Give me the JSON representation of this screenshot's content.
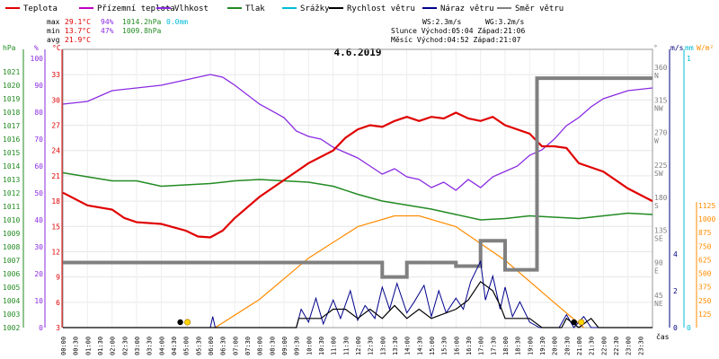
{
  "chart_data": {
    "type": "line",
    "title": "4.6.2019",
    "colors": {
      "temperature": "#e00000",
      "feels_like": "#c000c0",
      "humidity": "#8a2be2",
      "pressure": "#228b22",
      "precipitation": "#00bcd4",
      "wind_speed": "#000000",
      "wind_gust": "#00008b",
      "wind_dir": "#808080",
      "sun": "#ff8c00"
    },
    "legend": [
      {
        "key": "temperature",
        "label": "Teplota"
      },
      {
        "key": "feels_like",
        "label": "Přízemní teplota"
      },
      {
        "key": "humidity",
        "label": "Vlhkost"
      },
      {
        "key": "pressure",
        "label": "Tlak"
      },
      {
        "key": "precipitation",
        "label": "Srážky"
      },
      {
        "key": "wind_speed",
        "label": "Rychlost větru"
      },
      {
        "key": "wind_gust",
        "label": "Náraz větru"
      },
      {
        "key": "wind_dir",
        "label": "Směr větru"
      }
    ],
    "stats": {
      "max_label": "max",
      "max_t": "29.1°C",
      "max_h": "94%",
      "max_p": "1014.2hPa",
      "max_r": "0.0mm",
      "min_label": "min",
      "min_t": "13.7°C",
      "min_h": "47%",
      "min_p": "1009.8hPa",
      "avg_label": "avg",
      "avg_t": "21.9°C",
      "ws": "WS:2.3m/s",
      "wg": "WG:3.2m/s",
      "sun_line": "Slunce Východ:05:04  Západ:21:06",
      "moon_line": "Měsíc  Východ:04:52  Západ:21:07"
    },
    "axes": {
      "hpa_label": "hPa",
      "pct_label": "%",
      "c_label": "°C",
      "dir_label": "°",
      "ms_label": "m/s",
      "mm_label": "mm",
      "wm_label": "W/m²",
      "time_label": "čas",
      "hpa_ticks": [
        "1021",
        "1020",
        "1019",
        "1018",
        "1017",
        "1016",
        "1015",
        "1014",
        "1013",
        "1012",
        "1011",
        "1010",
        "1009",
        "1008",
        "1007",
        "1006",
        "1005",
        "1004",
        "1003",
        "1002"
      ],
      "pct_ticks": [
        "100",
        "90",
        "80",
        "70",
        "60",
        "50",
        "40",
        "30",
        "20",
        "10",
        "0"
      ],
      "c_ticks": [
        "33",
        "30",
        "27",
        "24",
        "21",
        "18",
        "15",
        "12",
        "9",
        "6",
        "3"
      ],
      "dir_ticks": [
        {
          "deg": "360",
          "dir": "N"
        },
        {
          "deg": "315",
          "dir": "NW"
        },
        {
          "deg": "270",
          "dir": "W"
        },
        {
          "deg": "225",
          "dir": "SW"
        },
        {
          "deg": "180",
          "dir": "S"
        },
        {
          "deg": "135",
          "dir": "SE"
        },
        {
          "deg": "90",
          "dir": "E"
        },
        {
          "deg": "45",
          "dir": "NE"
        }
      ],
      "ms_ticks": [
        "4",
        "2",
        "0"
      ],
      "mm_ticks": [
        "1",
        "0"
      ],
      "wm_ticks": [
        "1125",
        "1000",
        "875",
        "750",
        "625",
        "500",
        "375",
        "250",
        "125"
      ],
      "time_ticks": [
        "00:00",
        "00:30",
        "01:00",
        "01:30",
        "02:00",
        "02:30",
        "03:00",
        "03:30",
        "04:00",
        "04:30",
        "05:00",
        "05:30",
        "06:00",
        "06:30",
        "07:00",
        "07:30",
        "08:00",
        "08:30",
        "09:00",
        "09:30",
        "10:00",
        "10:30",
        "11:00",
        "11:30",
        "12:00",
        "12:30",
        "13:00",
        "13:30",
        "14:00",
        "14:30",
        "15:00",
        "15:30",
        "16:00",
        "16:30",
        "17:00",
        "17:30",
        "18:00",
        "18:30",
        "19:00",
        "19:30",
        "20:00",
        "20:30",
        "21:00",
        "21:30",
        "22:00",
        "22:30",
        "23:00",
        "23:30"
      ],
      "t_range": [
        3,
        36
      ],
      "time_range_h": [
        0,
        24
      ]
    },
    "series": {
      "temperature": [
        [
          0,
          19
        ],
        [
          1,
          17.5
        ],
        [
          2,
          17
        ],
        [
          2.5,
          16
        ],
        [
          3,
          15.5
        ],
        [
          4,
          15.3
        ],
        [
          5,
          14.5
        ],
        [
          5.5,
          13.8
        ],
        [
          6,
          13.7
        ],
        [
          6.5,
          14.5
        ],
        [
          7,
          16
        ],
        [
          8,
          18.5
        ],
        [
          9,
          20.5
        ],
        [
          10,
          22.5
        ],
        [
          11,
          24
        ],
        [
          11.5,
          25.5
        ],
        [
          12,
          26.5
        ],
        [
          12.5,
          27
        ],
        [
          13,
          26.8
        ],
        [
          13.5,
          27.5
        ],
        [
          14,
          28
        ],
        [
          14.5,
          27.5
        ],
        [
          15,
          28
        ],
        [
          15.5,
          27.8
        ],
        [
          16,
          28.5
        ],
        [
          16.5,
          27.8
        ],
        [
          17,
          27.5
        ],
        [
          17.5,
          28
        ],
        [
          18,
          27
        ],
        [
          19,
          26
        ],
        [
          19.5,
          24.5
        ],
        [
          20,
          24.5
        ],
        [
          20.5,
          24.3
        ],
        [
          21,
          22.5
        ],
        [
          21.5,
          22
        ],
        [
          22,
          21.5
        ],
        [
          23,
          19.5
        ],
        [
          24,
          18
        ]
      ],
      "humidity": [
        [
          0,
          83
        ],
        [
          1,
          84
        ],
        [
          2,
          88
        ],
        [
          3,
          89
        ],
        [
          4,
          90
        ],
        [
          5,
          92
        ],
        [
          6,
          94
        ],
        [
          6.5,
          93
        ],
        [
          7,
          90
        ],
        [
          8,
          83
        ],
        [
          9,
          78
        ],
        [
          9.5,
          73
        ],
        [
          10,
          71
        ],
        [
          10.5,
          70
        ],
        [
          11,
          67
        ],
        [
          11.5,
          65
        ],
        [
          12,
          63
        ],
        [
          12.5,
          60
        ],
        [
          13,
          57
        ],
        [
          13.5,
          59
        ],
        [
          14,
          56
        ],
        [
          14.5,
          55
        ],
        [
          15,
          52
        ],
        [
          15.5,
          54
        ],
        [
          16,
          51
        ],
        [
          16.5,
          55
        ],
        [
          17,
          52
        ],
        [
          17.5,
          56
        ],
        [
          18,
          58
        ],
        [
          18.5,
          60
        ],
        [
          19,
          64
        ],
        [
          19.5,
          66
        ],
        [
          20,
          70
        ],
        [
          20.5,
          75
        ],
        [
          21,
          78
        ],
        [
          21.5,
          82
        ],
        [
          22,
          85
        ],
        [
          23,
          88
        ],
        [
          24,
          89
        ]
      ],
      "pressure": [
        [
          0,
          1013.5
        ],
        [
          1,
          1013.2
        ],
        [
          2,
          1012.9
        ],
        [
          3,
          1012.9
        ],
        [
          4,
          1012.5
        ],
        [
          5,
          1012.6
        ],
        [
          6,
          1012.7
        ],
        [
          7,
          1012.9
        ],
        [
          8,
          1013.0
        ],
        [
          9,
          1012.9
        ],
        [
          10,
          1012.8
        ],
        [
          11,
          1012.5
        ],
        [
          12,
          1011.9
        ],
        [
          13,
          1011.4
        ],
        [
          14,
          1011.1
        ],
        [
          15,
          1010.8
        ],
        [
          16,
          1010.4
        ],
        [
          17,
          1010.0
        ],
        [
          18,
          1010.1
        ],
        [
          19,
          1010.3
        ],
        [
          20,
          1010.2
        ],
        [
          21,
          1010.1
        ],
        [
          22,
          1010.3
        ],
        [
          23,
          1010.5
        ],
        [
          24,
          1010.4
        ]
      ],
      "wind_dir": [
        [
          0,
          90
        ],
        [
          9.8,
          90
        ],
        [
          9.8,
          90
        ],
        [
          13,
          90
        ],
        [
          13,
          70
        ],
        [
          14,
          70
        ],
        [
          14,
          90
        ],
        [
          16,
          90
        ],
        [
          16,
          85
        ],
        [
          17,
          85
        ],
        [
          17,
          120
        ],
        [
          18,
          120
        ],
        [
          18,
          80
        ],
        [
          19.3,
          80
        ],
        [
          19.3,
          345
        ],
        [
          24,
          345
        ]
      ],
      "wind_speed": [
        [
          0,
          0
        ],
        [
          9.5,
          0
        ],
        [
          9.6,
          0.5
        ],
        [
          10,
          0.5
        ],
        [
          10.5,
          0.5
        ],
        [
          11,
          1
        ],
        [
          11.5,
          1
        ],
        [
          12,
          0.5
        ],
        [
          12.5,
          1
        ],
        [
          13,
          0.5
        ],
        [
          13.5,
          1.2
        ],
        [
          14,
          0.5
        ],
        [
          14.5,
          1
        ],
        [
          15,
          0.5
        ],
        [
          16,
          1
        ],
        [
          16.5,
          1.5
        ],
        [
          17,
          2.5
        ],
        [
          17.5,
          2
        ],
        [
          17.8,
          1.2
        ],
        [
          18,
          0.5
        ],
        [
          19,
          0.5
        ],
        [
          19.5,
          0
        ],
        [
          20.3,
          0
        ],
        [
          20.5,
          0.5
        ],
        [
          21,
          0
        ],
        [
          21.5,
          0.5
        ],
        [
          21.8,
          0
        ],
        [
          24,
          0
        ]
      ],
      "wind_gust": [
        [
          0,
          0
        ],
        [
          6,
          0
        ],
        [
          6.1,
          0.6
        ],
        [
          6.2,
          0
        ],
        [
          9.5,
          0
        ],
        [
          9.7,
          1
        ],
        [
          10,
          0.3
        ],
        [
          10.3,
          1.6
        ],
        [
          10.6,
          0.2
        ],
        [
          11,
          1.5
        ],
        [
          11.3,
          0.5
        ],
        [
          11.7,
          2
        ],
        [
          12,
          0.4
        ],
        [
          12.3,
          1.2
        ],
        [
          12.7,
          0.5
        ],
        [
          13,
          2.2
        ],
        [
          13.3,
          1
        ],
        [
          13.6,
          2.4
        ],
        [
          14,
          0.8
        ],
        [
          14.3,
          1.4
        ],
        [
          14.7,
          2.3
        ],
        [
          15,
          0.6
        ],
        [
          15.3,
          2
        ],
        [
          15.6,
          0.8
        ],
        [
          16,
          1.6
        ],
        [
          16.3,
          1
        ],
        [
          16.6,
          2.5
        ],
        [
          17,
          3.6
        ],
        [
          17.2,
          1.5
        ],
        [
          17.5,
          2.8
        ],
        [
          17.8,
          1
        ],
        [
          18,
          2.2
        ],
        [
          18.3,
          0.6
        ],
        [
          18.6,
          1.4
        ],
        [
          19,
          0.3
        ],
        [
          19.4,
          0
        ],
        [
          20.2,
          0
        ],
        [
          20.5,
          0.7
        ],
        [
          20.8,
          0
        ],
        [
          21.2,
          0.6
        ],
        [
          21.5,
          0
        ],
        [
          24,
          0
        ]
      ],
      "sun_radiation": [
        [
          6.2,
          0
        ],
        [
          8,
          260
        ],
        [
          10,
          640
        ],
        [
          12,
          930
        ],
        [
          13.5,
          1030
        ],
        [
          14.5,
          1030
        ],
        [
          16,
          930
        ],
        [
          18,
          620
        ],
        [
          20,
          230
        ],
        [
          21.2,
          0
        ]
      ]
    },
    "sun_events": [
      {
        "t": 5.07,
        "label": "sunrise"
      },
      {
        "t": 21.1,
        "label": "sunset"
      }
    ]
  }
}
